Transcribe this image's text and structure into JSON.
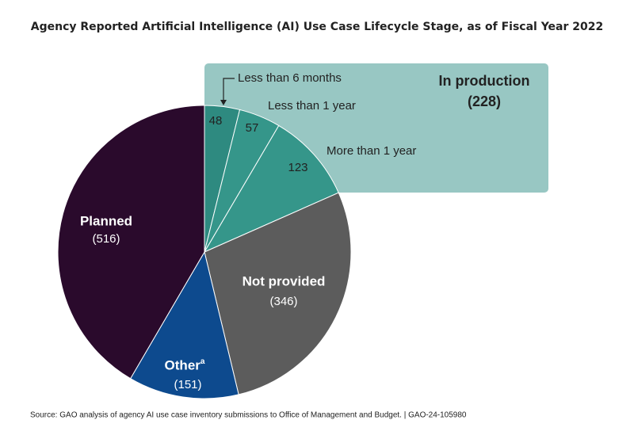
{
  "chart_data": {
    "type": "pie",
    "title": "Agency Reported Artificial Intelligence (AI) Use Case Lifecycle Stage, as of Fiscal Year 2022",
    "categories": [
      "Less than 6 months",
      "Less than 1 year",
      "More than 1 year",
      "Not provided",
      "Other",
      "Planned"
    ],
    "values": [
      48,
      57,
      123,
      346,
      151,
      516
    ],
    "value_labels": [
      "48",
      "57",
      "123",
      "(346)",
      "(151)",
      "(516)"
    ],
    "colors": [
      "#2e8a80",
      "#35968a",
      "#35968a",
      "#5c5c5c",
      "#0d4a8e",
      "#2a0a2c"
    ],
    "footnote_marker": "a",
    "group_label": "In production",
    "group_value_label": "(228)",
    "source": "Source: GAO analysis of agency AI use case inventory submissions to Office of Management and Budget.  |  GAO-24-105980"
  }
}
